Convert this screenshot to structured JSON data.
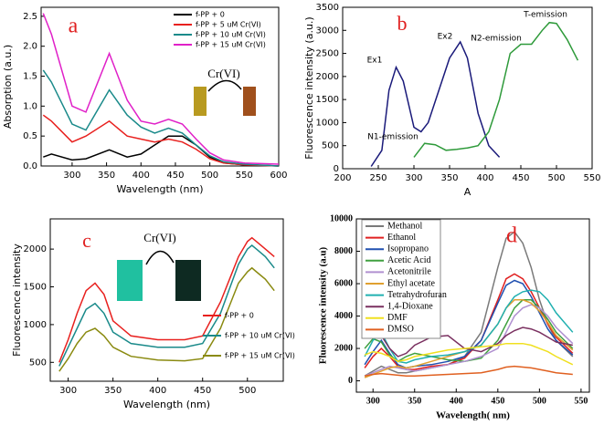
{
  "chart_data": [
    {
      "type": "line",
      "annotations": [
        "a",
        "Cr(VI)"
      ],
      "xlabel": "Wavelength (nm)",
      "ylabel": "Absorption (a.u.)",
      "x": [
        258,
        270,
        300,
        320,
        354,
        380,
        400,
        420,
        440,
        460,
        480,
        500,
        520,
        550,
        600
      ],
      "xlim": [
        255,
        600
      ],
      "xticks": [
        300,
        350,
        400,
        450,
        500,
        550,
        600
      ],
      "ylim": [
        0,
        2.65
      ],
      "yticks": [
        {
          "value": 0,
          "label": "0.0"
        },
        0.5,
        {
          "value": 1,
          "label": "1.0"
        },
        1.5,
        {
          "value": 2,
          "label": "2.0"
        },
        2.5
      ],
      "series": [
        {
          "name": "f-PP + 0",
          "color": "#000000",
          "values": [
            0.15,
            0.2,
            0.1,
            0.12,
            0.27,
            0.15,
            0.2,
            0.35,
            0.5,
            0.5,
            0.35,
            0.15,
            0.05,
            0.02,
            0.0
          ]
        },
        {
          "name": "f-PP + 5 uM Cr(VI)",
          "color": "#e8201e",
          "values": [
            0.85,
            0.75,
            0.4,
            0.5,
            0.75,
            0.5,
            0.45,
            0.4,
            0.45,
            0.4,
            0.28,
            0.12,
            0.05,
            0.02,
            0.0
          ]
        },
        {
          "name": "f-PP + 10 uM Cr(VI)",
          "color": "#1a8a8a",
          "values": [
            1.6,
            1.4,
            0.7,
            0.6,
            1.27,
            0.85,
            0.65,
            0.55,
            0.63,
            0.55,
            0.35,
            0.17,
            0.07,
            0.03,
            0.0
          ]
        },
        {
          "name": "f-PP + 15 uM Cr(VI)",
          "color": "#e020c8",
          "values": [
            2.55,
            2.2,
            1.0,
            0.9,
            1.88,
            1.1,
            0.75,
            0.7,
            0.78,
            0.7,
            0.45,
            0.22,
            0.1,
            0.05,
            0.03
          ]
        }
      ]
    },
    {
      "type": "line",
      "annotations": [
        "b",
        "Ex1",
        "Ex2",
        "N1-emission",
        "N2-emission",
        "T-emission"
      ],
      "xlabel": "A",
      "ylabel": "Fluorescence intensity (a.u.)",
      "xlim": [
        200,
        550
      ],
      "xticks": [
        200,
        250,
        300,
        350,
        400,
        450,
        500,
        550
      ],
      "ylim": [
        0,
        3500
      ],
      "yticks": [
        0,
        500,
        1000,
        1500,
        2000,
        2500,
        3000,
        3500
      ],
      "series": [
        {
          "color": "#1a1a7a",
          "x": [
            240,
            255,
            265,
            275,
            285,
            300,
            310,
            320,
            335,
            350,
            365,
            375,
            390,
            405,
            420
          ],
          "values": [
            50,
            400,
            1700,
            2200,
            1900,
            900,
            800,
            1000,
            1700,
            2400,
            2750,
            2400,
            1200,
            500,
            250
          ]
        },
        {
          "color": "#2e9a3a",
          "x": [
            300,
            315,
            330,
            345,
            360,
            375,
            390,
            405,
            420,
            435,
            450,
            465,
            480,
            490,
            500,
            515,
            530
          ],
          "values": [
            250,
            550,
            520,
            400,
            420,
            450,
            500,
            800,
            1500,
            2500,
            2700,
            2700,
            3000,
            3170,
            3150,
            2800,
            2350
          ]
        }
      ]
    },
    {
      "type": "line",
      "annotations": [
        "c",
        "Cr(VI)"
      ],
      "xlabel": "Wavelength (nm)",
      "ylabel": "Fluorescence intensity",
      "x": [
        290,
        300,
        310,
        320,
        330,
        340,
        350,
        370,
        400,
        430,
        450,
        470,
        490,
        500,
        505,
        510,
        520,
        530
      ],
      "xlim": [
        280,
        540
      ],
      "xticks": [
        300,
        350,
        400,
        450,
        500
      ],
      "ylim": [
        250,
        2400
      ],
      "yticks": [
        500,
        1000,
        1500,
        2000
      ],
      "series": [
        {
          "name": "f-PP + 0",
          "color": "#e8201e",
          "values": [
            500,
            800,
            1150,
            1450,
            1550,
            1400,
            1050,
            850,
            800,
            800,
            850,
            1300,
            1900,
            2100,
            2150,
            2100,
            2000,
            1900
          ]
        },
        {
          "name": "f-PP + 10 uM Cr(VI)",
          "color": "#1a8a8a",
          "values": [
            450,
            700,
            950,
            1200,
            1280,
            1150,
            900,
            750,
            700,
            700,
            750,
            1150,
            1800,
            2000,
            2050,
            2000,
            1900,
            1750
          ]
        },
        {
          "name": "f-PP + 15 uM Cr(VI)",
          "color": "#8a8a10",
          "values": [
            380,
            550,
            750,
            900,
            950,
            850,
            700,
            580,
            530,
            520,
            550,
            950,
            1550,
            1700,
            1750,
            1700,
            1600,
            1450
          ]
        }
      ]
    },
    {
      "type": "line",
      "annotations": [
        "d"
      ],
      "xlabel": "Wavelength( nm)",
      "ylabel": "Fluorescence intensity (a.u)",
      "x": [
        290,
        300,
        310,
        320,
        330,
        340,
        350,
        370,
        390,
        410,
        430,
        450,
        460,
        470,
        480,
        490,
        500,
        510,
        520,
        540
      ],
      "xlim": [
        280,
        560
      ],
      "xticks": [
        300,
        350,
        400,
        450,
        500,
        550
      ],
      "ylim": [
        -700,
        10000
      ],
      "yticks": [
        0,
        2000,
        4000,
        6000,
        8000,
        10000
      ],
      "series": [
        {
          "name": "Methanol",
          "color": "#7a7a7a",
          "values": [
            300,
            600,
            900,
            700,
            500,
            500,
            600,
            800,
            1000,
            1500,
            3000,
            7000,
            8800,
            9200,
            8500,
            7000,
            5000,
            3500,
            2500,
            1500
          ]
        },
        {
          "name": "Ethanol",
          "color": "#e02020",
          "values": [
            800,
            1500,
            2000,
            1500,
            900,
            700,
            700,
            900,
            1000,
            1400,
            2500,
            5000,
            6300,
            6600,
            6300,
            5500,
            4500,
            3500,
            2700,
            1700
          ]
        },
        {
          "name": "Isopropano",
          "color": "#2050b0",
          "values": [
            1000,
            1800,
            2500,
            1700,
            1000,
            800,
            900,
            1000,
            1200,
            1500,
            2500,
            4800,
            5900,
            6200,
            6000,
            5200,
            4200,
            3200,
            2500,
            1600
          ]
        },
        {
          "name": "Acetic Acid",
          "color": "#40a040",
          "values": [
            2000,
            2600,
            2400,
            1600,
            1200,
            1500,
            1700,
            1500,
            1300,
            1200,
            1400,
            2500,
            3500,
            4500,
            5000,
            5000,
            4500,
            3800,
            3000,
            2000
          ]
        },
        {
          "name": "Acetonitrile",
          "color": "#b090d0",
          "values": [
            300,
            500,
            700,
            900,
            800,
            700,
            600,
            800,
            1000,
            1200,
            1500,
            2000,
            3000,
            4000,
            4500,
            4700,
            4500,
            4000,
            3300,
            2300
          ]
        },
        {
          "name": "Ethyl acetate",
          "color": "#e0a030",
          "values": [
            200,
            400,
            600,
            800,
            900,
            800,
            900,
            1200,
            1500,
            1800,
            2200,
            3500,
            4500,
            5000,
            5000,
            4800,
            4300,
            3600,
            2800,
            1900
          ]
        },
        {
          "name": "Tetrahydrofuran",
          "color": "#20b0b0",
          "values": [
            1500,
            2500,
            3000,
            2000,
            1200,
            1100,
            1300,
            1500,
            1600,
            1800,
            2200,
            3500,
            4500,
            5200,
            5500,
            5600,
            5500,
            5000,
            4200,
            3000
          ]
        },
        {
          "name": "1,4-Dioxane",
          "color": "#7a3060",
          "values": [
            2800,
            2900,
            2800,
            2000,
            1500,
            1700,
            2200,
            2700,
            2800,
            2000,
            1800,
            2300,
            2800,
            3100,
            3300,
            3200,
            3000,
            2700,
            2400,
            2200
          ]
        },
        {
          "name": "DMF",
          "color": "#f0e020",
          "values": [
            1600,
            1800,
            1700,
            1500,
            1200,
            1300,
            1500,
            1700,
            1900,
            2000,
            2100,
            2200,
            2300,
            2300,
            2300,
            2200,
            2000,
            1800,
            1500,
            1000
          ]
        },
        {
          "name": "DMSO",
          "color": "#e06020",
          "values": [
            300,
            400,
            450,
            400,
            350,
            300,
            300,
            350,
            400,
            450,
            500,
            700,
            850,
            900,
            850,
            800,
            700,
            600,
            500,
            400
          ]
        }
      ]
    }
  ]
}
